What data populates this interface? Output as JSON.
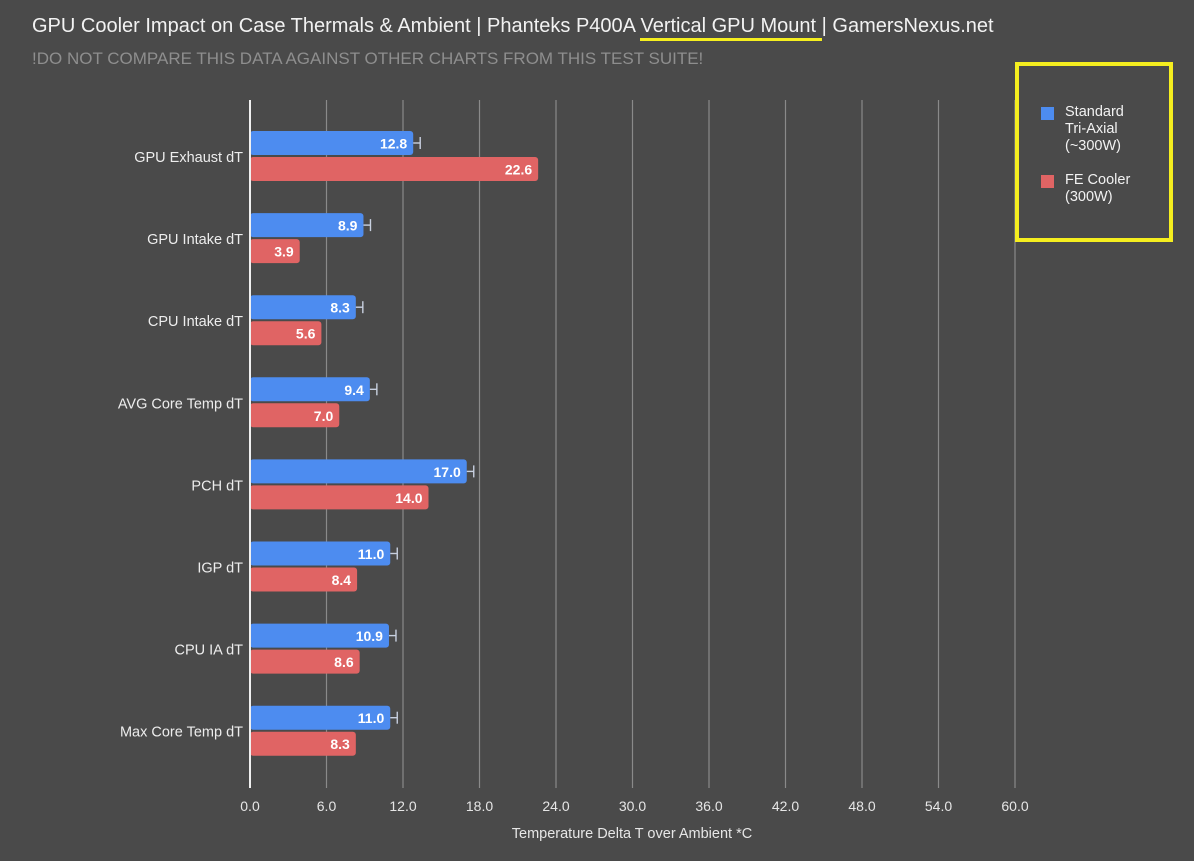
{
  "title": {
    "before": "GPU Cooler Impact on Case Thermals & Ambient | Phanteks P400A ",
    "highlight": "Vertical GPU Mount ",
    "after": "| GamersNexus.net"
  },
  "subtitle": "!DO NOT COMPARE THIS DATA AGAINST OTHER CHARTS FROM THIS TEST SUITE!",
  "colors": {
    "background": "#4a4a4a",
    "series_blue": "#4d8cf0",
    "series_red": "#e06464",
    "highlight_yellow": "#f5ee1f",
    "grid": "#8a8a8a"
  },
  "chart_data": {
    "type": "bar",
    "orientation": "horizontal",
    "categories": [
      "GPU Exhaust dT",
      "GPU Intake dT",
      "CPU Intake dT",
      "AVG Core Temp dT",
      "PCH dT",
      "IGP dT",
      "CPU IA dT",
      "Max Core Temp dT"
    ],
    "series": [
      {
        "name": "Standard Tri-Axial (~300W)",
        "values": [
          12.8,
          8.9,
          8.3,
          9.4,
          17.0,
          11.0,
          10.9,
          11.0
        ],
        "error_bars": true
      },
      {
        "name": "FE Cooler (300W)",
        "values": [
          22.6,
          3.9,
          5.6,
          7.0,
          14.0,
          8.4,
          8.6,
          8.3
        ],
        "error_bars": false
      }
    ],
    "value_labels": [
      [
        "12.8",
        "8.9",
        "8.3",
        "9.4",
        "17.0",
        "11.0",
        "10.9",
        "11.0"
      ],
      [
        "22.6",
        "3.9",
        "5.6",
        "7.0",
        "14.0",
        "8.4",
        "8.6",
        "8.3"
      ]
    ],
    "xlabel": "Temperature Delta T over Ambient *C",
    "xlim": [
      0,
      60
    ],
    "xticks": [
      0,
      6,
      12,
      18,
      24,
      30,
      36,
      42,
      48,
      54,
      60
    ],
    "xtick_labels": [
      "0.0",
      "6.0",
      "12.0",
      "18.0",
      "24.0",
      "30.0",
      "36.0",
      "42.0",
      "48.0",
      "54.0",
      "60.0"
    ],
    "grid": "vertical",
    "legend": {
      "placement": "top-right",
      "items": [
        {
          "lines": [
            "Standard",
            "Tri-Axial",
            "(~300W)"
          ],
          "color": "#4d8cf0"
        },
        {
          "lines": [
            "FE Cooler",
            "(300W)"
          ],
          "color": "#e06464"
        }
      ]
    }
  }
}
